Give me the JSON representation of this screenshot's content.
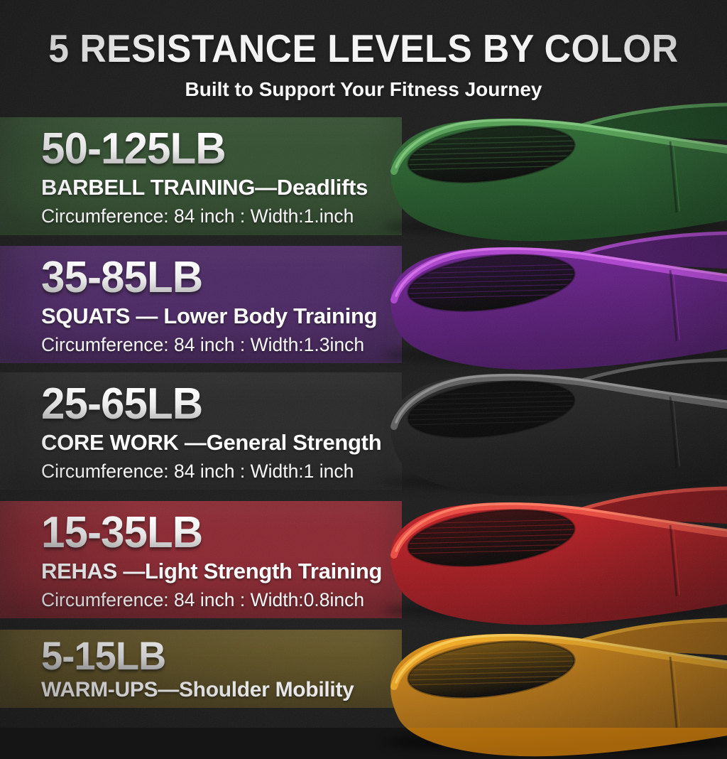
{
  "header": {
    "title": "5 RESISTANCE LEVELS BY COLOR",
    "subtitle": "Built to Support Your Fitness Journey"
  },
  "rows": [
    {
      "weight_range": "50-125LB",
      "use_case": "BARBELL TRAINING—Deadlifts",
      "dimensions": "Circumference: 84 inch : Width:1.inch",
      "band_color": "green",
      "colors": {
        "stripe": "#2c4829",
        "band_main": "#2a6a30",
        "band_dark": "#123c18",
        "band_rim": "#4f9c50",
        "band_rim_bright": "#7cc47a",
        "band_hole": "#0b1d0c",
        "band_rib": "#2f5c30"
      }
    },
    {
      "weight_range": "35-85LB",
      "use_case": "SQUATS — Lower Body Training",
      "dimensions": "Circumference: 84 inch : Width:1.3inch",
      "band_color": "purple",
      "colors": {
        "stripe": "#45215e",
        "band_main": "#6d1d92",
        "band_dark": "#3f1058",
        "band_rim": "#a93ecb",
        "band_rim_bright": "#d36ce8",
        "band_hole": "#1c0726",
        "band_rib": "#551575"
      }
    },
    {
      "weight_range": "25-65LB",
      "use_case": "CORE WORK —General Strength",
      "dimensions": "Circumference: 84 inch : Width:1 inch",
      "band_color": "black",
      "colors": {
        "stripe": "#212121",
        "band_main": "#242424",
        "band_dark": "#0e0e0e",
        "band_rim": "#5a5a5a",
        "band_rim_bright": "#8d8d8d",
        "band_hole": "#030303",
        "band_rib": "#1a1a1a"
      }
    },
    {
      "weight_range": "15-35LB",
      "use_case": "REHAS —Light Strength Training",
      "dimensions": "Circumference: 84 inch : Width:0.8inch",
      "band_color": "red",
      "colors": {
        "stripe": "#86202a",
        "band_main": "#c21a1f",
        "band_dark": "#7c0e13",
        "band_rim": "#e8453a",
        "band_rim_bright": "#ff7a5e",
        "band_hole": "#2e0506",
        "band_rib": "#8e1216"
      }
    },
    {
      "weight_range": "5-15LB",
      "use_case": "WARM-UPS—Shoulder Mobility",
      "band_color": "yellow",
      "colors": {
        "stripe": "#5d4e1e",
        "band_main": "#dd8e13",
        "band_dark": "#a5650b",
        "band_rim": "#f7ac1e",
        "band_rim_bright": "#ffd257",
        "band_hole": "#6e4a07",
        "band_rib": "#8a5c0a"
      }
    }
  ],
  "background": {
    "page": "#151515",
    "gap": "#131313"
  }
}
